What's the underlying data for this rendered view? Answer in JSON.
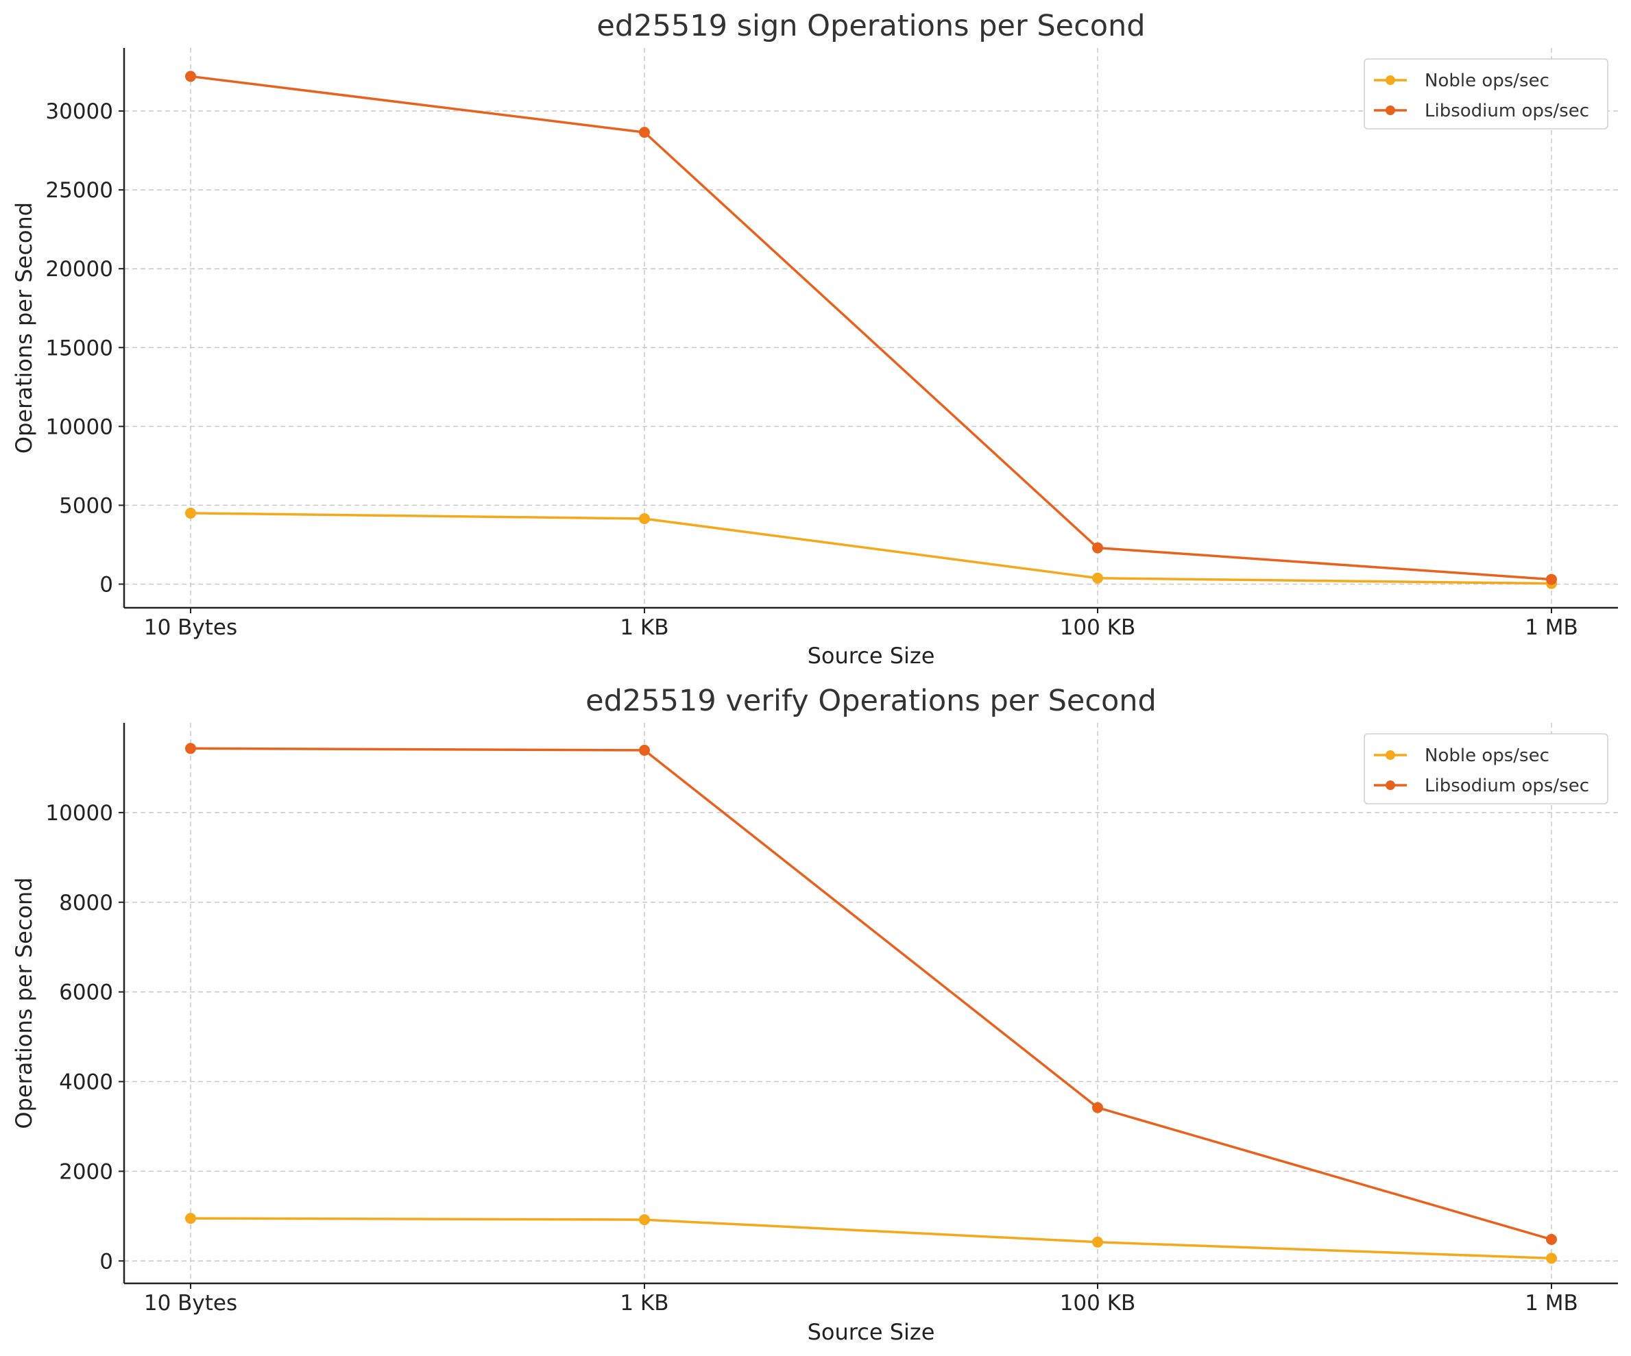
{
  "colors": {
    "noble": "#f5a81a",
    "libsodium": "#e8621e"
  },
  "chart_data": [
    {
      "type": "line",
      "title": "ed25519 sign Operations per Second",
      "xlabel": "Source Size",
      "ylabel": "Operations per Second",
      "categories": [
        "10 Bytes",
        "1 KB",
        "100 KB",
        "1 MB"
      ],
      "ylim": [
        -1500,
        34000
      ],
      "yticks": [
        0,
        5000,
        10000,
        15000,
        20000,
        25000,
        30000
      ],
      "ytick_labels": [
        "0",
        "5000",
        "10000",
        "15000",
        "20000",
        "25000",
        "30000"
      ],
      "grid": true,
      "legend_position": "top-right",
      "series": [
        {
          "name": "Noble ops/sec",
          "color_key": "noble",
          "values": [
            4500,
            4150,
            380,
            40
          ]
        },
        {
          "name": "Libsodium ops/sec",
          "color_key": "libsodium",
          "values": [
            32200,
            28650,
            2300,
            300
          ]
        }
      ]
    },
    {
      "type": "line",
      "title": "ed25519 verify Operations per Second",
      "xlabel": "Source Size",
      "ylabel": "Operations per Second",
      "categories": [
        "10 Bytes",
        "1 KB",
        "100 KB",
        "1 MB"
      ],
      "ylim": [
        -500,
        12000
      ],
      "yticks": [
        0,
        2000,
        4000,
        6000,
        8000,
        10000
      ],
      "ytick_labels": [
        "0",
        "2000",
        "4000",
        "6000",
        "8000",
        "10000"
      ],
      "grid": true,
      "legend_position": "top-right",
      "series": [
        {
          "name": "Noble ops/sec",
          "color_key": "noble",
          "values": [
            950,
            920,
            420,
            60
          ]
        },
        {
          "name": "Libsodium ops/sec",
          "color_key": "libsodium",
          "values": [
            11430,
            11390,
            3420,
            480
          ]
        }
      ]
    }
  ]
}
